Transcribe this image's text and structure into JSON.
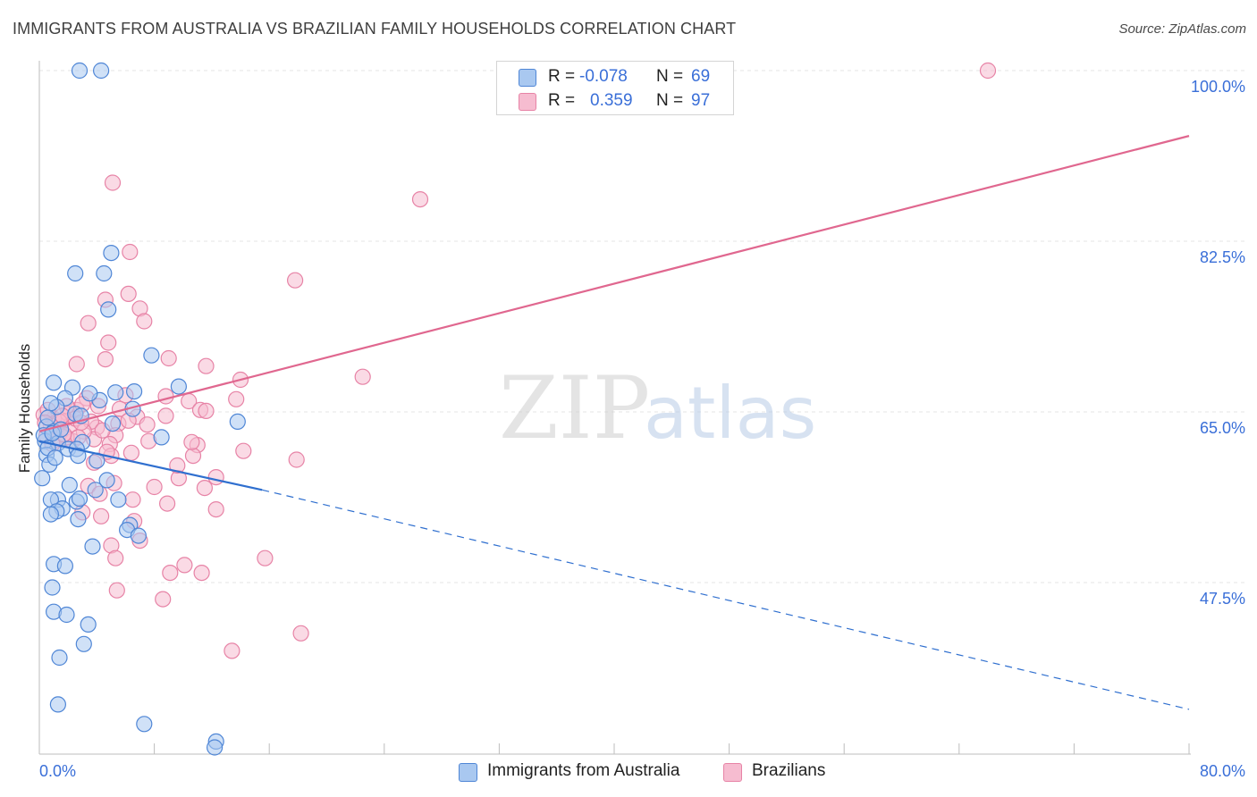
{
  "header": {
    "title": "IMMIGRANTS FROM AUSTRALIA VS BRAZILIAN FAMILY HOUSEHOLDS CORRELATION CHART",
    "source": "Source: ZipAtlas.com"
  },
  "watermark": {
    "zip": "ZIP",
    "atlas": "atlas"
  },
  "colors": {
    "blue_fill": "#a9c8f0",
    "blue_stroke": "#4f86d6",
    "blue_line": "#2f6fcf",
    "pink_fill": "#f6bcd0",
    "pink_stroke": "#e783a6",
    "pink_line": "#e0678f",
    "tick_label": "#3a6fd8",
    "grid": "#e5e5e5"
  },
  "legend": {
    "rows": [
      {
        "r_label": "R =",
        "r_value": "-0.078",
        "n_label": "N =",
        "n_value": "69"
      },
      {
        "r_label": "R =",
        "r_value": "0.359",
        "n_label": "N =",
        "n_value": "97"
      }
    ]
  },
  "bottom_legend": [
    {
      "label": "Immigrants from Australia"
    },
    {
      "label": "Brazilians"
    }
  ],
  "chart_data": {
    "type": "scatter",
    "title": "IMMIGRANTS FROM AUSTRALIA VS BRAZILIAN FAMILY HOUSEHOLDS CORRELATION CHART",
    "xlabel": "",
    "ylabel": "Family Households",
    "xlim": [
      0,
      80
    ],
    "ylim": [
      30,
      102
    ],
    "x_tick_labels": [
      "0.0%",
      "80.0%"
    ],
    "y_ticks": [
      100,
      82.5,
      65,
      47.5
    ],
    "y_tick_labels": [
      "100.0%",
      "82.5%",
      "65.0%",
      "47.5%"
    ],
    "legend_position": "top-center",
    "series": [
      {
        "name": "Immigrants from Australia",
        "R": -0.078,
        "N": 69,
        "trend": {
          "x0": 0,
          "y0": 62.0,
          "x1": 15.5,
          "y1": 57.0,
          "dash_to_x": 80,
          "dash_to_y": 34.5
        },
        "points": [
          [
            2.8,
            100.0
          ],
          [
            4.3,
            100.0
          ],
          [
            5.0,
            81.3
          ],
          [
            2.5,
            79.2
          ],
          [
            4.5,
            79.2
          ],
          [
            4.8,
            75.5
          ],
          [
            7.8,
            70.8
          ],
          [
            1.0,
            68.0
          ],
          [
            2.3,
            67.5
          ],
          [
            5.3,
            67.0
          ],
          [
            6.6,
            67.1
          ],
          [
            1.8,
            66.4
          ],
          [
            4.2,
            66.2
          ],
          [
            6.5,
            65.3
          ],
          [
            1.2,
            65.5
          ],
          [
            0.8,
            65.9
          ],
          [
            2.5,
            64.8
          ],
          [
            13.8,
            64.0
          ],
          [
            9.7,
            67.6
          ],
          [
            0.5,
            63.5
          ],
          [
            1.0,
            63.0
          ],
          [
            0.4,
            62.0
          ],
          [
            1.3,
            61.8
          ],
          [
            2.0,
            61.2
          ],
          [
            3.0,
            61.9
          ],
          [
            2.6,
            61.2
          ],
          [
            2.7,
            60.5
          ],
          [
            4.0,
            60.0
          ],
          [
            0.5,
            60.6
          ],
          [
            0.7,
            59.6
          ],
          [
            4.7,
            58.0
          ],
          [
            2.1,
            57.5
          ],
          [
            1.3,
            56.0
          ],
          [
            0.8,
            56.0
          ],
          [
            2.6,
            55.8
          ],
          [
            2.8,
            56.1
          ],
          [
            5.5,
            56.0
          ],
          [
            3.9,
            57.0
          ],
          [
            1.6,
            55.1
          ],
          [
            1.2,
            54.8
          ],
          [
            0.8,
            54.5
          ],
          [
            2.7,
            54.0
          ],
          [
            6.3,
            53.4
          ],
          [
            6.1,
            52.9
          ],
          [
            6.9,
            52.3
          ],
          [
            3.7,
            51.2
          ],
          [
            1.0,
            49.4
          ],
          [
            1.8,
            49.2
          ],
          [
            0.9,
            47.0
          ],
          [
            1.0,
            44.5
          ],
          [
            1.9,
            44.2
          ],
          [
            3.4,
            43.2
          ],
          [
            3.1,
            41.2
          ],
          [
            1.4,
            39.8
          ],
          [
            1.3,
            35.0
          ],
          [
            7.3,
            33.0
          ],
          [
            12.3,
            31.2
          ],
          [
            12.2,
            30.6
          ],
          [
            0.3,
            62.6
          ],
          [
            0.6,
            61.3
          ],
          [
            0.9,
            62.8
          ],
          [
            1.5,
            63.2
          ],
          [
            0.6,
            64.4
          ],
          [
            2.9,
            64.6
          ],
          [
            3.5,
            66.9
          ],
          [
            5.1,
            63.8
          ],
          [
            0.2,
            58.2
          ],
          [
            1.1,
            60.3
          ],
          [
            8.5,
            62.4
          ]
        ]
      },
      {
        "name": "Brazilians",
        "R": 0.359,
        "N": 97,
        "trend": {
          "x0": 0,
          "y0": 63.0,
          "x1": 80,
          "y1": 93.3
        },
        "points": [
          [
            66.0,
            100.0
          ],
          [
            26.5,
            86.8
          ],
          [
            5.1,
            88.5
          ],
          [
            6.3,
            81.4
          ],
          [
            17.8,
            78.5
          ],
          [
            6.2,
            77.1
          ],
          [
            4.6,
            76.5
          ],
          [
            7.0,
            75.6
          ],
          [
            7.3,
            74.3
          ],
          [
            3.4,
            74.1
          ],
          [
            4.8,
            72.1
          ],
          [
            4.6,
            70.4
          ],
          [
            9.0,
            70.5
          ],
          [
            11.6,
            69.7
          ],
          [
            2.6,
            69.9
          ],
          [
            22.5,
            68.6
          ],
          [
            14.0,
            68.3
          ],
          [
            8.8,
            66.6
          ],
          [
            13.7,
            66.3
          ],
          [
            10.4,
            66.1
          ],
          [
            6.0,
            66.7
          ],
          [
            3.3,
            66.4
          ],
          [
            5.6,
            65.3
          ],
          [
            11.2,
            65.2
          ],
          [
            11.6,
            65.1
          ],
          [
            8.8,
            64.6
          ],
          [
            6.8,
            64.5
          ],
          [
            5.5,
            63.8
          ],
          [
            4.0,
            63.4
          ],
          [
            5.3,
            62.6
          ],
          [
            3.8,
            62.2
          ],
          [
            4.9,
            61.7
          ],
          [
            2.3,
            62.0
          ],
          [
            1.9,
            62.4
          ],
          [
            1.5,
            63.2
          ],
          [
            1.0,
            64.3
          ],
          [
            1.6,
            64.0
          ],
          [
            2.0,
            64.8
          ],
          [
            2.6,
            65.2
          ],
          [
            3.0,
            65.8
          ],
          [
            7.6,
            62.0
          ],
          [
            11.0,
            61.6
          ],
          [
            14.2,
            61.0
          ],
          [
            10.7,
            60.5
          ],
          [
            17.9,
            60.1
          ],
          [
            9.7,
            58.2
          ],
          [
            3.4,
            57.4
          ],
          [
            5.2,
            57.7
          ],
          [
            4.2,
            56.6
          ],
          [
            6.5,
            56.0
          ],
          [
            8.9,
            55.6
          ],
          [
            12.3,
            55.0
          ],
          [
            3.0,
            54.7
          ],
          [
            4.3,
            54.3
          ],
          [
            6.6,
            53.8
          ],
          [
            7.0,
            51.8
          ],
          [
            5.0,
            51.3
          ],
          [
            5.3,
            50.0
          ],
          [
            10.1,
            49.3
          ],
          [
            9.1,
            48.5
          ],
          [
            15.7,
            50.0
          ],
          [
            11.3,
            48.5
          ],
          [
            5.4,
            46.7
          ],
          [
            8.6,
            45.8
          ],
          [
            18.2,
            42.3
          ],
          [
            13.4,
            40.5
          ],
          [
            0.5,
            62.5
          ],
          [
            0.8,
            63.6
          ],
          [
            1.2,
            62.1
          ],
          [
            2.2,
            63.7
          ],
          [
            2.5,
            64.3
          ],
          [
            3.6,
            64.0
          ],
          [
            4.4,
            63.1
          ],
          [
            0.3,
            64.7
          ],
          [
            0.6,
            65.2
          ],
          [
            1.4,
            64.0
          ],
          [
            1.9,
            65.6
          ],
          [
            3.1,
            63.0
          ],
          [
            4.1,
            65.6
          ],
          [
            6.2,
            64.1
          ],
          [
            2.7,
            62.4
          ],
          [
            1.0,
            62.9
          ],
          [
            0.4,
            63.9
          ],
          [
            1.7,
            62.7
          ],
          [
            2.9,
            63.9
          ],
          [
            5.0,
            60.5
          ],
          [
            3.8,
            59.8
          ],
          [
            9.6,
            59.5
          ],
          [
            12.3,
            58.3
          ],
          [
            11.5,
            57.2
          ],
          [
            10.6,
            61.9
          ],
          [
            7.5,
            63.7
          ],
          [
            6.4,
            60.8
          ],
          [
            0.9,
            61.7
          ],
          [
            1.6,
            64.6
          ],
          [
            4.7,
            60.9
          ],
          [
            8.0,
            57.3
          ]
        ]
      }
    ]
  }
}
